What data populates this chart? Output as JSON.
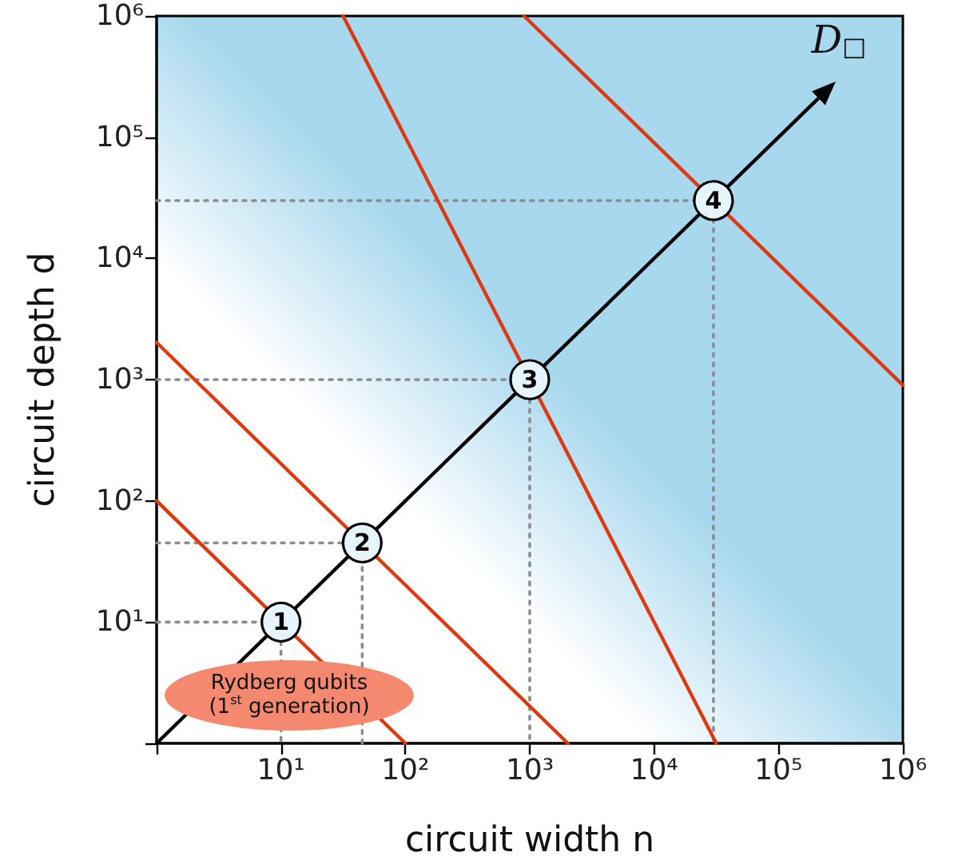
{
  "chart_data": {
    "type": "line",
    "xlabel": "circuit width n",
    "ylabel": "circuit depth d",
    "log": "xy",
    "grid": false,
    "xlim": [
      1,
      1000000
    ],
    "ylim": [
      1,
      1000000
    ],
    "xticks": [
      {
        "value": 1,
        "label": null
      },
      {
        "value": 10,
        "label": "10¹"
      },
      {
        "value": 100,
        "label": "10²"
      },
      {
        "value": 1000,
        "label": "10³"
      },
      {
        "value": 10000,
        "label": "10⁴"
      },
      {
        "value": 100000,
        "label": "10⁵"
      },
      {
        "value": 1000000,
        "label": "10⁶"
      }
    ],
    "yticks": [
      {
        "value": 1,
        "label": null
      },
      {
        "value": 10,
        "label": "10¹"
      },
      {
        "value": 100,
        "label": "10²"
      },
      {
        "value": 1000,
        "label": "10³"
      },
      {
        "value": 10000,
        "label": "10⁴"
      },
      {
        "value": 100000,
        "label": "10⁵"
      },
      {
        "value": 1000000,
        "label": "10⁶"
      }
    ],
    "series": [
      {
        "color": "#8c8c8c",
        "line_style": "dotted",
        "x": [
          1,
          10,
          10
        ],
        "values": [
          10,
          10,
          1
        ]
      },
      {
        "color": "#8c8c8c",
        "line_style": "dotted",
        "x": [
          1,
          45,
          45
        ],
        "values": [
          45,
          45,
          1
        ]
      },
      {
        "color": "#8c8c8c",
        "line_style": "dotted",
        "x": [
          1,
          1000,
          1000
        ],
        "values": [
          1000,
          1000,
          1
        ]
      },
      {
        "color": "#8c8c8c",
        "line_style": "dotted",
        "x": [
          1,
          30000,
          30000
        ],
        "values": [
          30000,
          30000,
          1
        ]
      },
      {
        "color": "#dd3a11",
        "x": [
          1,
          100
        ],
        "values": [
          100,
          1
        ]
      },
      {
        "color": "#dd3a11",
        "x": [
          1,
          2025
        ],
        "values": [
          2025,
          1
        ]
      },
      {
        "color": "#dd3a11",
        "x": [
          31.6,
          31623
        ],
        "values": [
          1000000,
          1
        ]
      },
      {
        "color": "#dd3a11",
        "x": [
          900,
          1000000
        ],
        "values": [
          1000000,
          900
        ]
      },
      {
        "type": "scatter",
        "color": "#e6f4fb",
        "marker": "circle",
        "x": [
          10,
          45,
          1000,
          30000
        ],
        "values": [
          10,
          45,
          1000,
          30000
        ]
      }
    ],
    "annotations": [
      {
        "text": "1",
        "x": 10,
        "y": 10
      },
      {
        "text": "2",
        "x": 45,
        "y": 45
      },
      {
        "text": "3",
        "x": 1000,
        "y": 1000
      },
      {
        "text": "4",
        "x": 30000,
        "y": 30000
      },
      "D$_{□}$",
      "Rydberg qubits\n(1$^{st}$ generation)"
    ]
  }
}
